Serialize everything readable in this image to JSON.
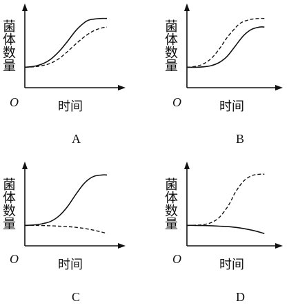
{
  "chart_data": [
    {
      "type": "line",
      "panel_label": "A",
      "xlabel": "时间",
      "ylabel": "菌体数量",
      "origin_label": "O",
      "xlim": [
        0,
        10
      ],
      "ylim": [
        0,
        10
      ],
      "series": [
        {
          "style": "solid",
          "x": [
            0,
            1,
            2,
            3,
            4,
            5,
            6,
            7,
            7.5,
            8,
            9,
            9.6
          ],
          "y": [
            2.6,
            2.7,
            3.0,
            3.6,
            4.6,
            5.9,
            7.3,
            8.3,
            8.6,
            8.7,
            8.8,
            8.8
          ]
        },
        {
          "style": "dashed",
          "x": [
            0,
            1,
            2,
            3,
            4,
            5,
            6,
            7,
            8,
            9,
            9.6
          ],
          "y": [
            2.6,
            2.65,
            2.8,
            3.1,
            3.7,
            4.6,
            5.6,
            6.5,
            7.2,
            7.6,
            7.7
          ]
        }
      ]
    },
    {
      "type": "line",
      "panel_label": "B",
      "xlabel": "时间",
      "ylabel": "菌体数量",
      "origin_label": "O",
      "xlim": [
        0,
        10
      ],
      "ylim": [
        0,
        10
      ],
      "series": [
        {
          "style": "solid",
          "x": [
            0,
            1,
            2,
            3,
            4,
            5,
            6,
            7,
            8,
            9,
            9.6
          ],
          "y": [
            2.6,
            2.6,
            2.65,
            2.8,
            3.2,
            4.0,
            5.3,
            6.6,
            7.4,
            7.7,
            7.7
          ]
        },
        {
          "style": "dashed",
          "x": [
            0,
            1,
            2,
            3,
            4,
            5,
            6,
            6.5,
            7,
            8,
            9,
            9.6
          ],
          "y": [
            2.6,
            2.7,
            3.0,
            3.7,
            4.9,
            6.4,
            7.6,
            8.1,
            8.4,
            8.7,
            8.8,
            8.8
          ]
        }
      ]
    },
    {
      "type": "line",
      "panel_label": "C",
      "xlabel": "时间",
      "ylabel": "菌体数量",
      "origin_label": "O",
      "xlim": [
        0,
        10
      ],
      "ylim": [
        0,
        10
      ],
      "series": [
        {
          "style": "solid",
          "x": [
            0,
            1,
            2,
            3,
            4,
            5,
            6,
            7,
            8,
            9,
            9.6
          ],
          "y": [
            2.6,
            2.65,
            2.8,
            3.1,
            3.8,
            5.0,
            6.6,
            8.0,
            8.8,
            9.0,
            9.0
          ]
        },
        {
          "style": "dashed",
          "x": [
            0,
            1,
            2,
            3,
            4,
            5,
            6,
            7,
            8,
            9,
            9.6
          ],
          "y": [
            2.6,
            2.6,
            2.58,
            2.55,
            2.5,
            2.45,
            2.35,
            2.2,
            2.0,
            1.75,
            1.55
          ]
        }
      ]
    },
    {
      "type": "line",
      "panel_label": "D",
      "xlabel": "时间",
      "ylabel": "菌体数量",
      "origin_label": "O",
      "xlim": [
        0,
        10
      ],
      "ylim": [
        0,
        10
      ],
      "series": [
        {
          "style": "solid",
          "x": [
            0,
            1,
            2,
            3,
            4,
            5,
            6,
            7,
            8,
            9,
            9.6
          ],
          "y": [
            2.6,
            2.6,
            2.58,
            2.55,
            2.5,
            2.45,
            2.35,
            2.2,
            2.0,
            1.75,
            1.55
          ]
        },
        {
          "style": "dashed",
          "x": [
            0,
            1,
            2,
            3,
            4,
            5,
            5.5,
            6,
            7,
            8,
            9,
            9.6
          ],
          "y": [
            2.6,
            2.62,
            2.7,
            2.95,
            3.6,
            4.9,
            5.8,
            6.8,
            8.2,
            8.9,
            9.1,
            9.1
          ]
        }
      ]
    }
  ]
}
